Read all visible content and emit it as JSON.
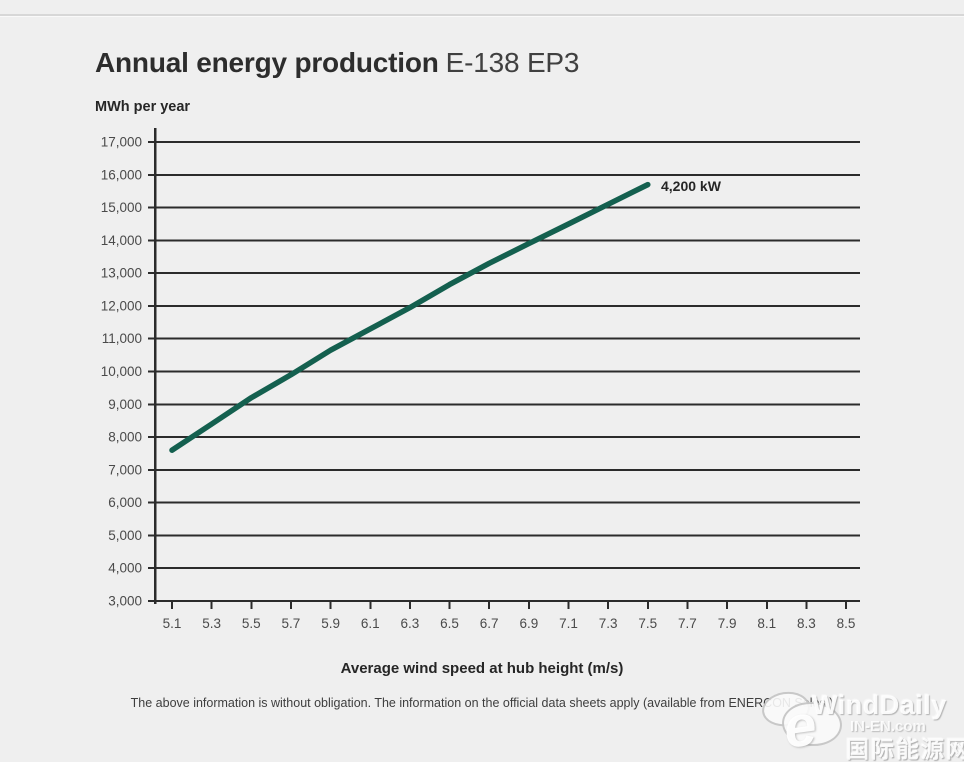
{
  "header": {
    "title_bold": "Annual energy production",
    "title_light": "E-138 EP3"
  },
  "chart_data": {
    "type": "line",
    "title": "Annual energy production E-138 EP3",
    "xlabel": "Average wind speed at hub height (m/s)",
    "ylabel": "MWh per year",
    "x_tick_labels": [
      "5.1",
      "5.3",
      "5.5",
      "5.7",
      "5.9",
      "6.1",
      "6.3",
      "6.5",
      "6.7",
      "6.9",
      "7.1",
      "7.3",
      "7.5",
      "7.7",
      "7.9",
      "8.1",
      "8.3",
      "8.5"
    ],
    "x_tick_values": [
      5.1,
      5.3,
      5.5,
      5.7,
      5.9,
      6.1,
      6.3,
      6.5,
      6.7,
      6.9,
      7.1,
      7.3,
      7.5,
      7.7,
      7.9,
      8.1,
      8.3,
      8.5
    ],
    "y_tick_labels": [
      "3,000",
      "4,000",
      "5,000",
      "6,000",
      "7,000",
      "8,000",
      "9,000",
      "10,000",
      "11,000",
      "12,000",
      "13,000",
      "14,000",
      "15,000",
      "16,000",
      "17,000"
    ],
    "y_tick_values": [
      3000,
      4000,
      5000,
      6000,
      7000,
      8000,
      9000,
      10000,
      11000,
      12000,
      13000,
      14000,
      15000,
      16000,
      17000
    ],
    "ylim": [
      3000,
      17000
    ],
    "xlim": [
      5.1,
      8.5
    ],
    "grid": "horizontal",
    "legend_position": "inline-right-of-line-end",
    "colors": {
      "line": "#14604f",
      "grid": "#2b2b2b",
      "axis": "#2b2b2b",
      "background": "#efefef"
    },
    "series": [
      {
        "name": "4,200 kW",
        "x": [
          5.1,
          5.3,
          5.5,
          5.7,
          5.9,
          6.1,
          6.3,
          6.5,
          6.7,
          6.9,
          7.1,
          7.3,
          7.5
        ],
        "values": [
          7600,
          8400,
          9200,
          9900,
          10650,
          11300,
          11950,
          12650,
          13300,
          13900,
          14500,
          15100,
          15700
        ]
      }
    ]
  },
  "footer": {
    "disclaimer": "The above information is without obligation. The information on the official data sheets apply (available from ENERCON Sales.)"
  },
  "watermark": {
    "brand": "WindDaily",
    "site": "IN-EN.com",
    "site_cn": "国际能源网",
    "swoosh": "e"
  }
}
